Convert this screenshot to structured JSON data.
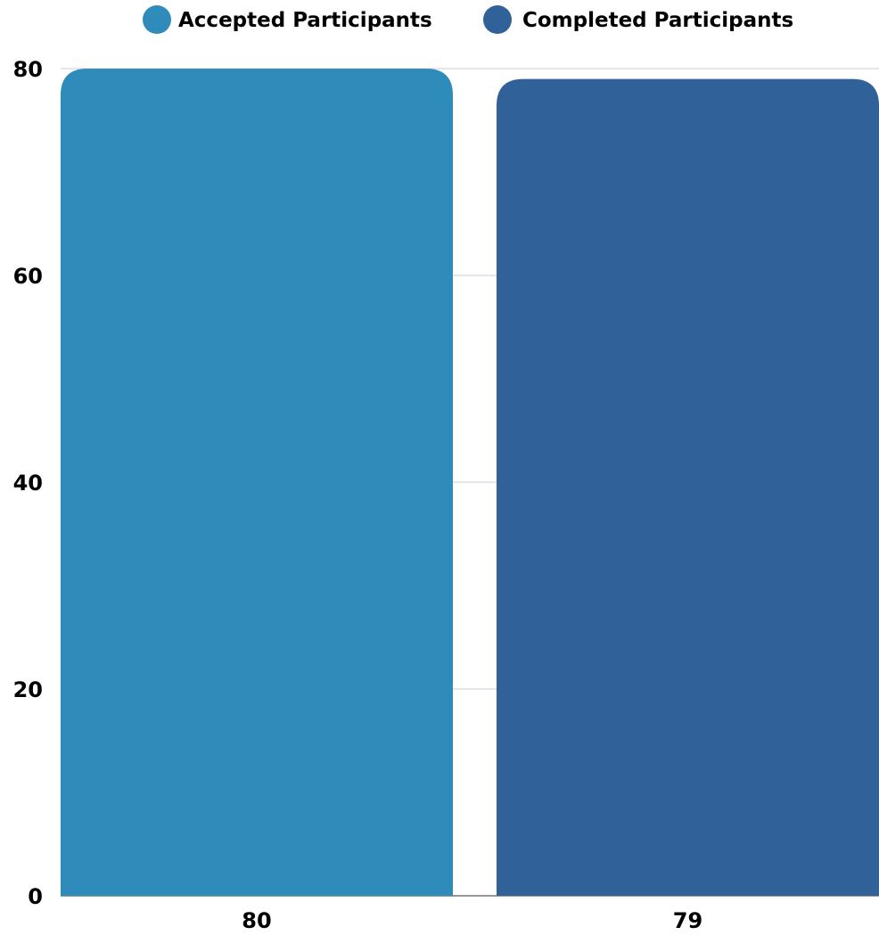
{
  "chart_data": {
    "type": "bar",
    "title": "",
    "xlabel": "",
    "ylabel": "",
    "categories": [
      "Accepted Participants",
      "Completed Participants"
    ],
    "values": [
      80,
      79
    ],
    "data_labels": [
      "80",
      "79"
    ],
    "colors": [
      "#2e8bba",
      "#306199"
    ],
    "ylim": [
      0,
      80
    ],
    "yticks": [
      0,
      20,
      40,
      60,
      80
    ],
    "ytick_labels": [
      "0",
      "20",
      "40",
      "60",
      "80"
    ],
    "grid": true,
    "legend": {
      "position": "top-center",
      "entries": [
        {
          "label": "Accepted Participants",
          "color": "#2e8bba"
        },
        {
          "label": "Completed Participants",
          "color": "#306199"
        }
      ]
    }
  }
}
